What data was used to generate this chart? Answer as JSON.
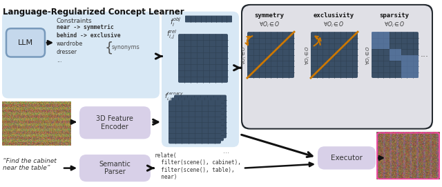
{
  "title": "Language-Regularized Concept Learner",
  "bg_color": "#ffffff",
  "light_blue_bg": "#d8e8f5",
  "light_blue_bg2": "#cfe0f0",
  "light_purple_bg": "#d8d0e8",
  "dark_matrix_bg": "#3a4f66",
  "dark_matrix_grid": "#2e3f52",
  "dark_outer_box": "#22282e",
  "dark_inner_box": "#e0e0e6",
  "arrow_color": "#111111",
  "orange_color": "#cc7700",
  "highlight_blue": "#6688bb",
  "highlight_blue2": "#99aacc",
  "llm_box_fill": "#c5d8ec",
  "llm_box_edge": "#7799bb",
  "constraints_title": "Constraints",
  "constraints_lines": [
    "near -> symmetric",
    "behind -> exclusive",
    "wardrobe",
    "dresser",
    "..."
  ],
  "code_text": "relate(\n  filter(scene(), cabinet),\n  filter(scene(), table),\n  near)",
  "llm_label": "LLM",
  "encoder_label": "3D Feature\nEncoder",
  "parser_label": "Semantic\nParser",
  "executor_label": "Executor",
  "symmetry_label": "symmetry",
  "exclusivity_label": "exclusivity",
  "sparsity_label": "sparsity",
  "quote_text": "“Find the cabinet\nnear the table”"
}
